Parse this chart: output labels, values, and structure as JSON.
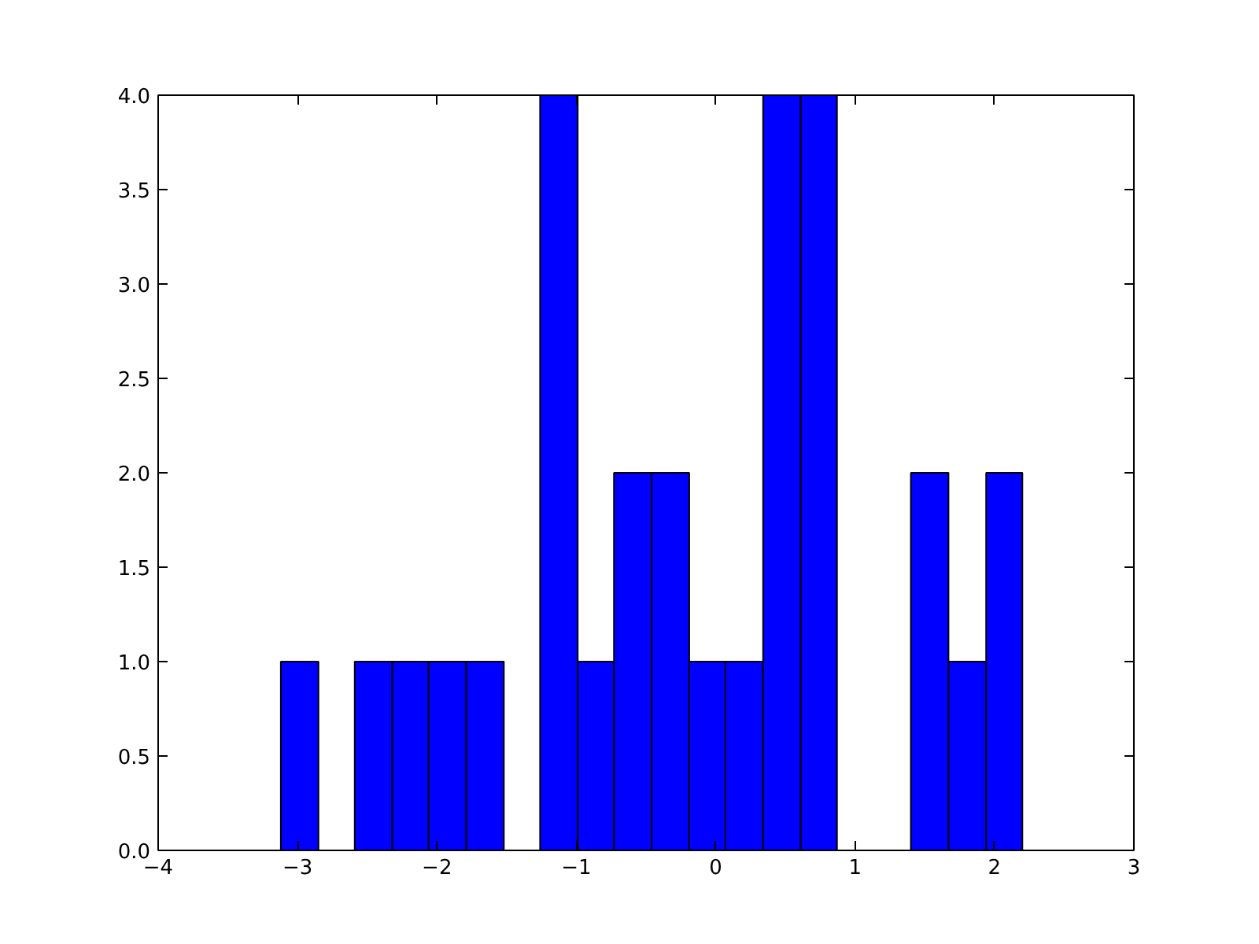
{
  "chart_data": {
    "type": "histogram",
    "bins": [
      -3.12,
      -2.85,
      -2.59,
      -2.32,
      -2.06,
      -1.79,
      -1.52,
      -1.26,
      -0.99,
      -0.73,
      -0.46,
      -0.19,
      0.07,
      0.34,
      0.61,
      0.87,
      1.4,
      1.67,
      1.94,
      2.2
    ],
    "values": [
      1,
      0,
      1,
      1,
      1,
      1,
      0,
      4,
      1,
      2,
      2,
      1,
      1,
      4,
      4,
      0,
      2,
      1,
      2
    ],
    "color": "#0000ff",
    "xlim": [
      -4,
      3
    ],
    "xticks": [
      {
        "value": -4,
        "label": "−4"
      },
      {
        "value": -3,
        "label": "−3"
      },
      {
        "value": -2,
        "label": "−2"
      },
      {
        "value": -1,
        "label": "−1"
      },
      0,
      1,
      2,
      3
    ],
    "ylim": [
      0,
      4
    ],
    "yticks": [
      {
        "value": 0,
        "label": "0.0"
      },
      {
        "value": 0.5,
        "label": "0.5"
      },
      {
        "value": 1,
        "label": "1.0"
      },
      {
        "value": 1.5,
        "label": "1.5"
      },
      {
        "value": 2,
        "label": "2.0"
      },
      {
        "value": 2.5,
        "label": "2.5"
      },
      {
        "value": 3,
        "label": "3.0"
      },
      {
        "value": 3.5,
        "label": "3.5"
      },
      {
        "value": 4,
        "label": "4.0"
      }
    ],
    "grid": false
  }
}
